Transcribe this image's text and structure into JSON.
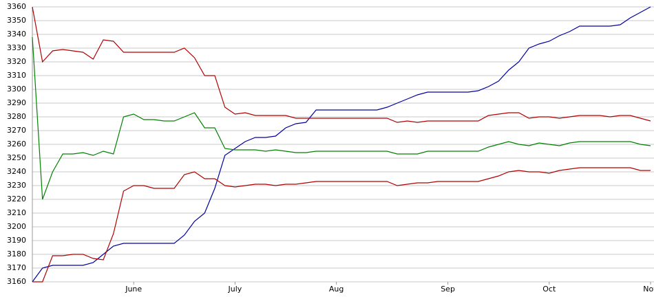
{
  "chart_data": {
    "type": "line",
    "categories": [
      null,
      null,
      null,
      null,
      null,
      null,
      null,
      null,
      null,
      null,
      "June",
      null,
      null,
      null,
      null,
      null,
      null,
      null,
      null,
      null,
      "July",
      null,
      null,
      null,
      null,
      null,
      null,
      null,
      null,
      null,
      "Aug",
      null,
      null,
      null,
      null,
      null,
      null,
      null,
      null,
      null,
      null,
      "Sep",
      null,
      null,
      null,
      null,
      null,
      null,
      null,
      null,
      null,
      "Oct",
      null,
      null,
      null,
      null,
      null,
      null,
      null,
      null,
      null,
      "Nov"
    ],
    "series": [
      {
        "color": "#0000a0",
        "values": [
          3160,
          3170,
          3172,
          3172,
          3172,
          3172,
          3174,
          3180,
          3186,
          3188,
          3188,
          3188,
          3188,
          3188,
          3188,
          3194,
          3204,
          3210,
          3228,
          3252,
          3257,
          3262,
          3265,
          3265,
          3266,
          3272,
          3275,
          3276,
          3285,
          3285,
          3285,
          3285,
          3285,
          3285,
          3285,
          3287,
          3290,
          3293,
          3296,
          3298,
          3298,
          3298,
          3298,
          3298,
          3299,
          3302,
          3306,
          3314,
          3320,
          3330,
          3333,
          3335,
          3339,
          3342,
          3346,
          3346,
          3346,
          3346,
          3347,
          3352,
          3356,
          3360
        ]
      },
      {
        "color": "#b00000",
        "values": [
          3360,
          3320,
          3328,
          3329,
          3328,
          3327,
          3322,
          3336,
          3335,
          3327,
          3327,
          3327,
          3327,
          3327,
          3327,
          3330,
          3323,
          3310,
          3310,
          3287,
          3282,
          3283,
          3281,
          3281,
          3281,
          3281,
          3279,
          3279,
          3279,
          3279,
          3279,
          3279,
          3279,
          3279,
          3279,
          3279,
          3276,
          3277,
          3276,
          3277,
          3277,
          3277,
          3277,
          3277,
          3277,
          3281,
          3282,
          3283,
          3283,
          3279,
          3280,
          3280,
          3279,
          3280,
          3281,
          3281,
          3281,
          3280,
          3281,
          3281,
          3279,
          3277
        ]
      },
      {
        "color": "#008000",
        "values": [
          3338,
          3220,
          3240,
          3253,
          3253,
          3254,
          3252,
          3255,
          3253,
          3280,
          3282,
          3278,
          3278,
          3277,
          3277,
          3280,
          3283,
          3272,
          3272,
          3257,
          3256,
          3256,
          3256,
          3255,
          3256,
          3255,
          3254,
          3254,
          3255,
          3255,
          3255,
          3255,
          3255,
          3255,
          3255,
          3255,
          3253,
          3253,
          3253,
          3255,
          3255,
          3255,
          3255,
          3255,
          3255,
          3258,
          3260,
          3262,
          3260,
          3259,
          3261,
          3260,
          3259,
          3261,
          3262,
          3262,
          3262,
          3262,
          3262,
          3262,
          3260,
          3259
        ]
      },
      {
        "color": "#b00000",
        "values": [
          3160,
          3160,
          3179,
          3179,
          3180,
          3180,
          3177,
          3176,
          3195,
          3226,
          3230,
          3230,
          3228,
          3228,
          3228,
          3238,
          3240,
          3235,
          3235,
          3230,
          3229,
          3230,
          3231,
          3231,
          3230,
          3231,
          3231,
          3232,
          3233,
          3233,
          3233,
          3233,
          3233,
          3233,
          3233,
          3233,
          3230,
          3231,
          3232,
          3232,
          3233,
          3233,
          3233,
          3233,
          3233,
          3235,
          3237,
          3240,
          3241,
          3240,
          3240,
          3239,
          3241,
          3242,
          3243,
          3243,
          3243,
          3243,
          3243,
          3243,
          3241,
          3241
        ]
      }
    ],
    "ylim": [
      3160,
      3360
    ],
    "yticks": [
      3160,
      3170,
      3180,
      3190,
      3200,
      3210,
      3220,
      3230,
      3240,
      3250,
      3260,
      3270,
      3280,
      3290,
      3300,
      3310,
      3320,
      3330,
      3340,
      3350,
      3360
    ],
    "grid": true
  }
}
